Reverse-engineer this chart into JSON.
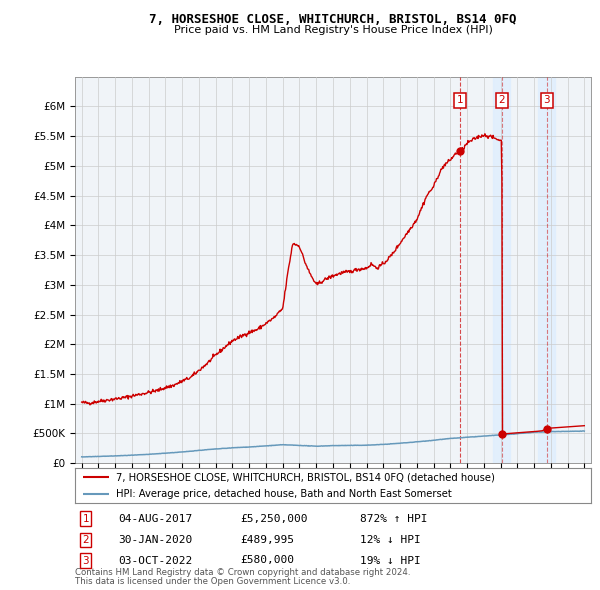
{
  "title": "7, HORSESHOE CLOSE, WHITCHURCH, BRISTOL, BS14 0FQ",
  "subtitle": "Price paid vs. HM Land Registry's House Price Index (HPI)",
  "legend_line1": "7, HORSESHOE CLOSE, WHITCHURCH, BRISTOL, BS14 0FQ (detached house)",
  "legend_line2": "HPI: Average price, detached house, Bath and North East Somerset",
  "footer1": "Contains HM Land Registry data © Crown copyright and database right 2024.",
  "footer2": "This data is licensed under the Open Government Licence v3.0.",
  "transactions": [
    {
      "label": "1",
      "date": "04-AUG-2017",
      "price": "£5,250,000",
      "change": "872% ↑ HPI",
      "year": 2017.59
    },
    {
      "label": "2",
      "date": "30-JAN-2020",
      "price": "£489,995",
      "change": "12% ↓ HPI",
      "year": 2020.08
    },
    {
      "label": "3",
      "date": "03-OCT-2022",
      "price": "£580,000",
      "change": "19% ↓ HPI",
      "year": 2022.75
    }
  ],
  "transaction_prices": [
    5250000,
    489995,
    580000
  ],
  "ylim": [
    0,
    6500000
  ],
  "xlim": [
    1994.6,
    2025.4
  ],
  "yticks": [
    0,
    500000,
    1000000,
    1500000,
    2000000,
    2500000,
    3000000,
    3500000,
    4000000,
    4500000,
    5000000,
    5500000,
    6000000
  ],
  "ytick_labels": [
    "£0",
    "£500K",
    "£1M",
    "£1.5M",
    "£2M",
    "£2.5M",
    "£3M",
    "£3.5M",
    "£4M",
    "£4.5M",
    "£5M",
    "£5.5M",
    "£6M"
  ],
  "red_color": "#cc0000",
  "blue_color": "#6699bb",
  "band_color": "#ddeeff",
  "grid_color": "#cccccc",
  "bg_color": "#ffffff",
  "plot_bg": "#f0f4f8"
}
